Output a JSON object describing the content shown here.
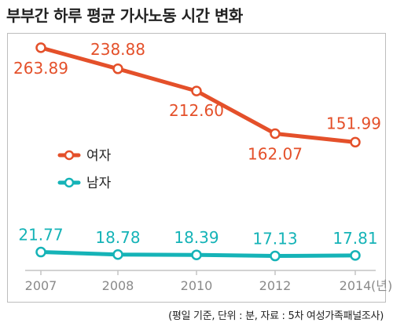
{
  "title": "부부간 하루 평균 가사노동 시간 변화",
  "source_note": "(평일 기준, 단위 : 분, 자료 : 5차 여성가족패널조사)",
  "x_unit_suffix": "(년)",
  "colors": {
    "female": "#e4502a",
    "male": "#15b3b7"
  },
  "chart_data": {
    "type": "line",
    "title": "부부간 하루 평균 가사노동 시간 변화",
    "categories": [
      "2007",
      "2008",
      "2010",
      "2012",
      "2014"
    ],
    "ylabel": "",
    "xlabel": "",
    "ylim": [
      0,
      300
    ],
    "grid": false,
    "legend_position": "left-middle",
    "series": [
      {
        "name": "여자",
        "values": [
          263.89,
          238.88,
          212.6,
          162.07,
          151.99
        ],
        "labels": [
          "263.89",
          "238.88",
          "212.60",
          "162.07",
          "151.99"
        ]
      },
      {
        "name": "남자",
        "values": [
          21.77,
          18.78,
          18.39,
          17.13,
          17.81
        ],
        "labels": [
          "21.77",
          "18.78",
          "18.39",
          "17.13",
          "17.81"
        ]
      }
    ]
  }
}
